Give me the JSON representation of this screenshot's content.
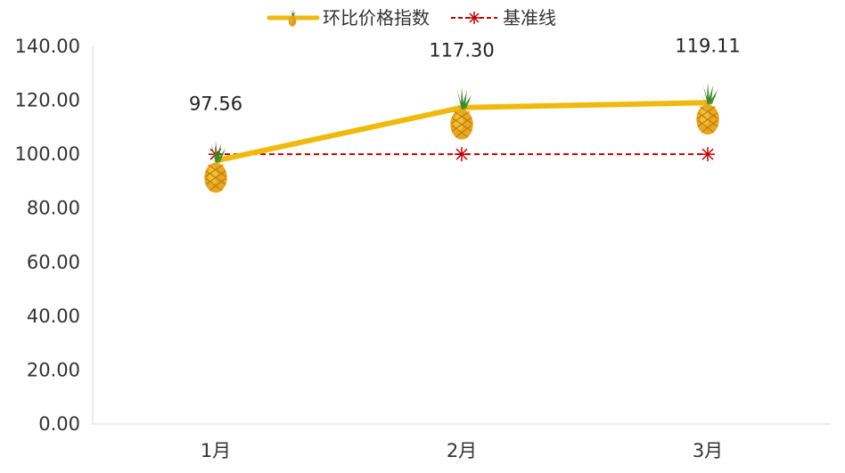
{
  "chart_data": {
    "type": "line",
    "categories": [
      "1月",
      "2月",
      "3月"
    ],
    "series": [
      {
        "name": "环比价格指数",
        "values": [
          97.56,
          117.3,
          119.11
        ],
        "color": "#F0B90B",
        "marker": "pineapple-icon"
      },
      {
        "name": "基准线",
        "values": [
          100,
          100,
          100
        ],
        "color": "#C00000",
        "marker": "asterisk",
        "dashed": true
      }
    ],
    "data_labels": [
      "97.56",
      "117.30",
      "119.11"
    ],
    "ylim": [
      0,
      140
    ],
    "yticks": [
      "0.00",
      "20.00",
      "40.00",
      "60.00",
      "80.00",
      "100.00",
      "120.00",
      "140.00"
    ],
    "legend_position": "top",
    "grid": false
  }
}
